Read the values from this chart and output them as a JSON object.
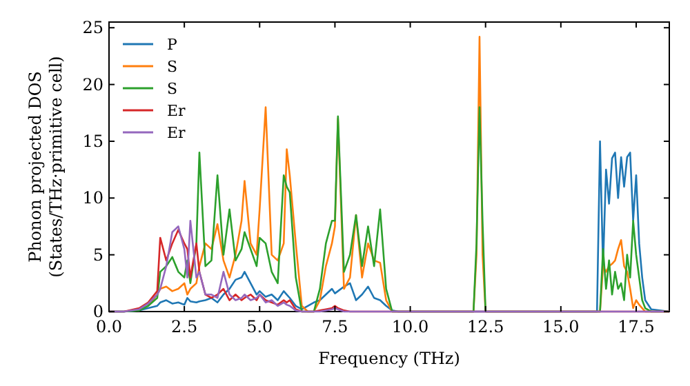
{
  "chart_data": {
    "type": "line",
    "xlabel": "Frequency (THz)",
    "ylabel": "Phonon projected DOS\n(States/THz·primitive cell)",
    "xlim": [
      0,
      18.6
    ],
    "ylim": [
      0,
      25.5
    ],
    "xticks": [
      {
        "value": 0,
        "label": "0.0"
      },
      {
        "value": 2.5,
        "label": "2.5"
      },
      {
        "value": 5,
        "label": "5.0"
      },
      {
        "value": 7.5,
        "label": "7.5"
      },
      {
        "value": 10,
        "label": "10.0"
      },
      {
        "value": 12.5,
        "label": "12.5"
      },
      {
        "value": 15,
        "label": "15.0"
      },
      {
        "value": 17.5,
        "label": "17.5"
      }
    ],
    "yticks": [
      0,
      5,
      10,
      15,
      20,
      25
    ],
    "grid": false,
    "legend": "top left",
    "marker": "none",
    "line_style": "solid",
    "x": [
      0,
      0.5,
      1.0,
      1.3,
      1.6,
      1.7,
      1.9,
      2.1,
      2.3,
      2.5,
      2.6,
      2.7,
      2.9,
      3.0,
      3.2,
      3.4,
      3.6,
      3.8,
      4.0,
      4.2,
      4.4,
      4.5,
      4.7,
      4.9,
      5.0,
      5.2,
      5.4,
      5.6,
      5.8,
      5.9,
      6.0,
      6.2,
      6.4,
      6.6,
      6.8,
      7.0,
      7.2,
      7.4,
      7.5,
      7.6,
      7.8,
      8.0,
      8.2,
      8.4,
      8.6,
      8.8,
      9.0,
      9.2,
      9.4,
      9.6,
      10.0,
      11.0,
      12.0,
      12.1,
      12.2,
      12.3,
      12.4,
      12.5,
      12.7,
      14.0,
      16.0,
      16.2,
      16.3,
      16.4,
      16.5,
      16.6,
      16.7,
      16.8,
      16.9,
      17.0,
      17.1,
      17.2,
      17.3,
      17.4,
      17.5,
      17.6,
      17.7,
      17.8,
      18.0,
      18.6
    ],
    "series": [
      {
        "name": "P",
        "color": "#1f77b4",
        "values": [
          0,
          0,
          0.1,
          0.3,
          0.5,
          0.8,
          1.0,
          0.7,
          0.8,
          0.6,
          1.2,
          0.9,
          0.8,
          0.9,
          1.0,
          1.2,
          0.8,
          1.5,
          2.0,
          2.8,
          3.0,
          3.5,
          2.5,
          1.5,
          1.8,
          1.3,
          1.5,
          1.0,
          1.8,
          1.5,
          1.2,
          0.5,
          0.2,
          0.5,
          0.8,
          1.0,
          1.5,
          2.0,
          1.6,
          1.8,
          2.2,
          2.5,
          1.0,
          1.5,
          2.2,
          1.2,
          1.0,
          0.5,
          0.1,
          0,
          0,
          0,
          0,
          0,
          0,
          0,
          0,
          0,
          0,
          0,
          0,
          0,
          15.0,
          4,
          12.5,
          9.5,
          13.5,
          14.0,
          10,
          13.6,
          11,
          13.6,
          14.0,
          8,
          12,
          6,
          3,
          1,
          0.2,
          0
        ]
      },
      {
        "name": "S",
        "color": "#ff7f0e",
        "values": [
          null,
          null,
          null,
          0.5,
          1.5,
          2.0,
          2.2,
          1.8,
          2.0,
          2.5,
          1.5,
          2.0,
          2.5,
          4.0,
          6.0,
          5.5,
          7.7,
          4.5,
          3.0,
          5.0,
          8.0,
          11.5,
          6.0,
          5.0,
          9.0,
          18.0,
          5.0,
          4.5,
          6.0,
          14.3,
          12.0,
          6.0,
          0.5,
          0,
          0,
          1.0,
          4.0,
          6.0,
          7.5,
          17.0,
          2.0,
          3.0,
          8.5,
          3.0,
          6.0,
          4.5,
          4.3,
          1.0,
          0,
          0,
          0,
          0,
          0,
          0,
          5.0,
          24.2,
          5,
          0,
          0,
          0,
          0,
          0,
          0,
          4.0,
          3.5,
          4.0,
          4.2,
          4.5,
          5.5,
          6.3,
          4.0,
          3.5,
          2.0,
          0.3,
          1.0,
          0.6,
          0.3,
          0,
          0,
          0
        ]
      },
      {
        "name": "S",
        "color": "#2ca02c",
        "values": [
          0,
          0,
          0.1,
          0.5,
          1.2,
          3.5,
          4.0,
          4.8,
          3.5,
          3.0,
          4.5,
          2.5,
          6.0,
          14.0,
          4.0,
          4.5,
          12.0,
          5.0,
          9.0,
          4.5,
          5.5,
          7.0,
          5.5,
          4.0,
          6.5,
          6.0,
          3.5,
          2.5,
          12.0,
          11.0,
          10.5,
          3.0,
          0,
          0,
          0,
          2.0,
          6.0,
          8.0,
          8.0,
          17.2,
          3.5,
          5.0,
          8.5,
          4.0,
          7.5,
          4.0,
          9.0,
          2.0,
          0,
          0,
          0,
          0,
          0,
          0,
          6.0,
          18.0,
          8,
          0,
          0,
          0,
          0,
          0,
          0,
          5.5,
          2.0,
          4.5,
          1.5,
          3.5,
          2.0,
          2.5,
          1.0,
          5.0,
          3.0,
          8.0,
          5.0,
          3.0,
          1.0,
          0.3,
          0,
          0
        ]
      },
      {
        "name": "Er",
        "color": "#d62728",
        "values": [
          0,
          0,
          0.3,
          0.8,
          1.8,
          6.5,
          4.5,
          6.0,
          7.2,
          6.0,
          5.5,
          3.0,
          6.0,
          3.5,
          1.5,
          1.2,
          1.5,
          2.0,
          1.0,
          1.5,
          1.0,
          1.2,
          1.5,
          1.0,
          1.5,
          1.0,
          0.8,
          0.6,
          1.0,
          0.8,
          1.0,
          0.2,
          0,
          0,
          0,
          0.1,
          0.2,
          0.3,
          0.5,
          0.3,
          0.1,
          0,
          0,
          0,
          0,
          0,
          0,
          0,
          0,
          0,
          0,
          0,
          0,
          0,
          0,
          0,
          0,
          0,
          0,
          0,
          0,
          0,
          0,
          0,
          0,
          0,
          0,
          0,
          0,
          0,
          0,
          0,
          0,
          0,
          0,
          0,
          0,
          0,
          0,
          0
        ]
      },
      {
        "name": "Er",
        "color": "#9467bd",
        "values": [
          0,
          0,
          0.2,
          0.7,
          1.5,
          2.0,
          4.0,
          7.0,
          7.5,
          5.5,
          3.0,
          8.0,
          3.0,
          3.5,
          1.5,
          1.5,
          1.2,
          3.5,
          1.5,
          1.0,
          1.2,
          1.5,
          1.0,
          1.2,
          1.5,
          0.8,
          1.0,
          0.5,
          0.8,
          0.6,
          0.5,
          0.1,
          0,
          0,
          0,
          0,
          0.1,
          0.2,
          0.3,
          0.2,
          0,
          0,
          0,
          0,
          0,
          0,
          0,
          0,
          0,
          0,
          0,
          0,
          0,
          0,
          0,
          0,
          0,
          0,
          0,
          0,
          0,
          0,
          0,
          0,
          0,
          0,
          0,
          0,
          0,
          0,
          0,
          0,
          0,
          0,
          0,
          0,
          0,
          0,
          0,
          0
        ]
      }
    ]
  }
}
